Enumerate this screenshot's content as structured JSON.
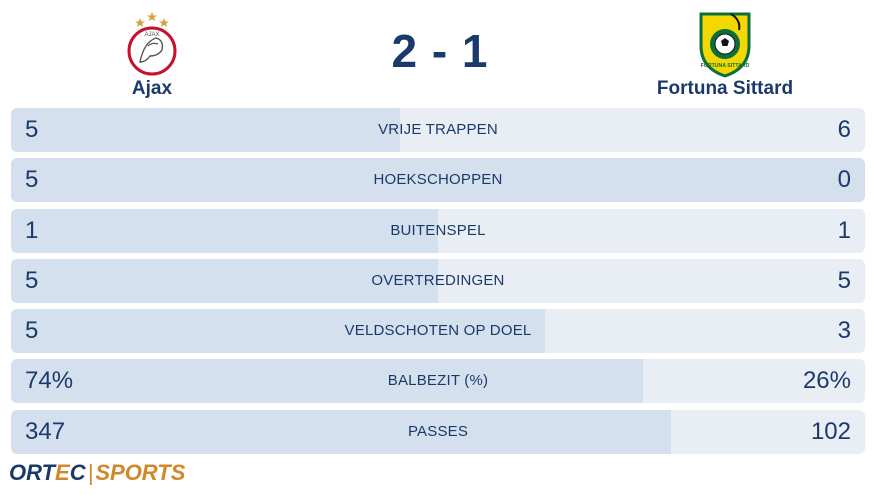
{
  "home_team": {
    "name": "Ajax",
    "logo_icon": "ajax-logo-icon",
    "logo_text": "AJAX"
  },
  "away_team": {
    "name": "Fortuna Sittard",
    "logo_icon": "fortuna-sittard-logo-icon",
    "logo_text": "FORTUNA SITTARD"
  },
  "score": "2 - 1",
  "stats": [
    {
      "label": "VRIJE TRAPPEN",
      "home": "5",
      "away": "6",
      "home_share": 0.455
    },
    {
      "label": "HOEKSCHOPPEN",
      "home": "5",
      "away": "0",
      "home_share": 1.0
    },
    {
      "label": "BUITENSPEL",
      "home": "1",
      "away": "1",
      "home_share": 0.5
    },
    {
      "label": "OVERTREDINGEN",
      "home": "5",
      "away": "5",
      "home_share": 0.5
    },
    {
      "label": "VELDSCHOTEN OP DOEL",
      "home": "5",
      "away": "3",
      "home_share": 0.625
    },
    {
      "label": "BALBEZIT (%)",
      "home": "74%",
      "away": "26%",
      "home_share": 0.74
    },
    {
      "label": "PASSES",
      "home": "347",
      "away": "102",
      "home_share": 0.773
    }
  ],
  "brand": {
    "part1": "ORT",
    "part2": "E",
    "part3": "C",
    "separator": "|",
    "part4": "SPORTS"
  },
  "colors": {
    "text": "#1b3a6b",
    "track": "#e8eef4",
    "fill": "#d4e0ee",
    "accent": "#d1872a"
  }
}
